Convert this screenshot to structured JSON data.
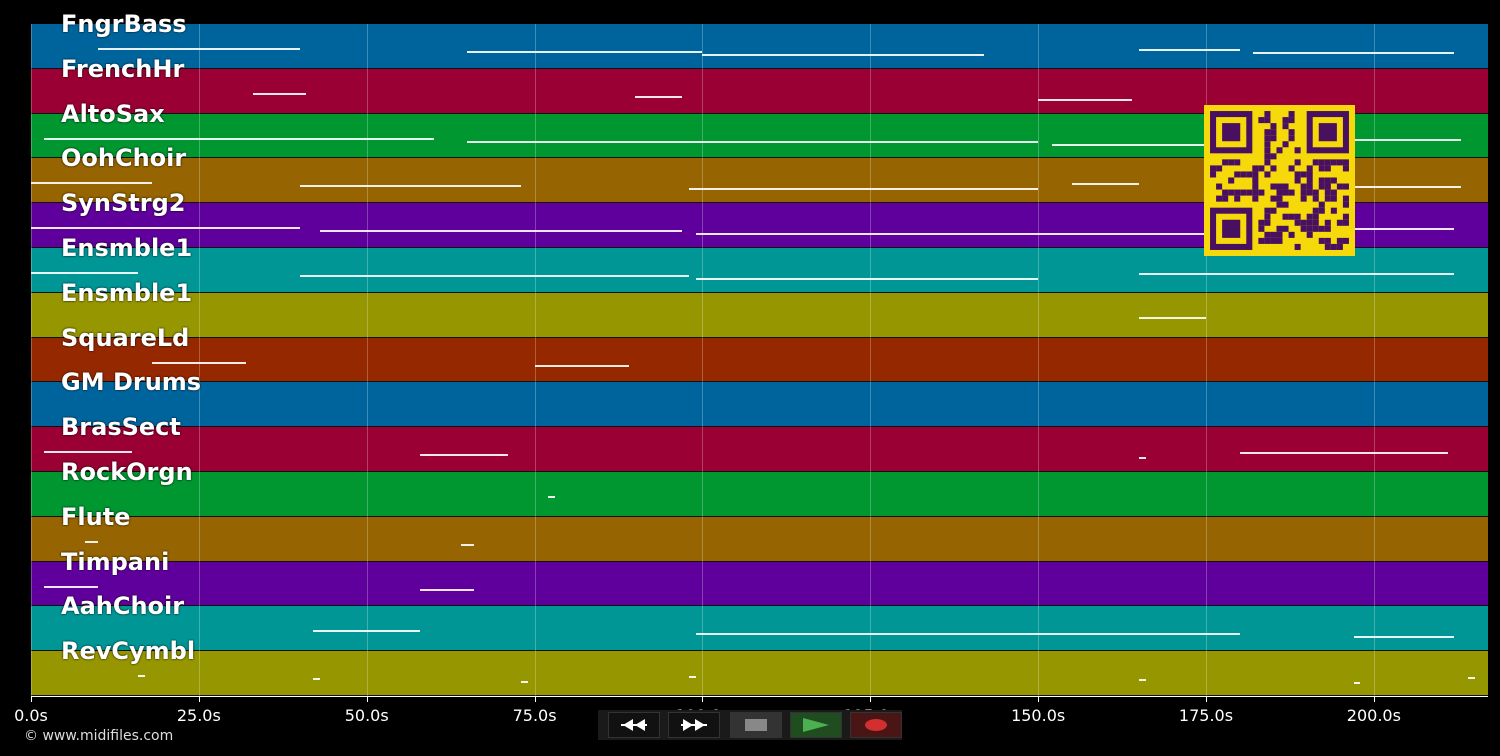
{
  "tracks": [
    {
      "name": "FngrBass",
      "color": "#00649c"
    },
    {
      "name": "FrenchHr",
      "color": "#9a0033"
    },
    {
      "name": "AltoSax",
      "color": "#009630"
    },
    {
      "name": "OohChoir",
      "color": "#966400"
    },
    {
      "name": "SynStrg2",
      "color": "#60009c"
    },
    {
      "name": "Ensmble1",
      "color": "#009696"
    },
    {
      "name": "Ensmble1",
      "color": "#969600"
    },
    {
      "name": "SquareLd",
      "color": "#962800"
    },
    {
      "name": "GM Drums",
      "color": "#00649c"
    },
    {
      "name": "BrasSect",
      "color": "#9a0033"
    },
    {
      "name": "RockOrgn",
      "color": "#009630"
    },
    {
      "name": "Flute",
      "color": "#966400"
    },
    {
      "name": "Timpani",
      "color": "#60009c"
    },
    {
      "name": "AahChoir",
      "color": "#009696"
    },
    {
      "name": "RevCymbl",
      "color": "#969600"
    }
  ],
  "x_axis": {
    "unit": "s",
    "max_seconds": 217,
    "ticks": [
      {
        "value": 0,
        "label": "0.0s"
      },
      {
        "value": 25,
        "label": "25.0s"
      },
      {
        "value": 50,
        "label": "50.0s"
      },
      {
        "value": 75,
        "label": "75.0s"
      },
      {
        "value": 100,
        "label": "100.0s"
      },
      {
        "value": 125,
        "label": "125.0s"
      },
      {
        "value": 150,
        "label": "150.0s"
      },
      {
        "value": 175,
        "label": "175.0s"
      },
      {
        "value": 200,
        "label": "200.0s"
      }
    ]
  },
  "copyright": "© www.midifiles.com",
  "transport": {
    "rewind_icon": "rewind-icon",
    "fast_forward_icon": "fast-forward-icon",
    "stop_icon": "stop-icon",
    "play_icon": "play-icon",
    "record_icon": "record-icon",
    "play_color": "#4caf50",
    "record_color": "#d32f2f"
  },
  "qr_code": "qr-code-icon"
}
